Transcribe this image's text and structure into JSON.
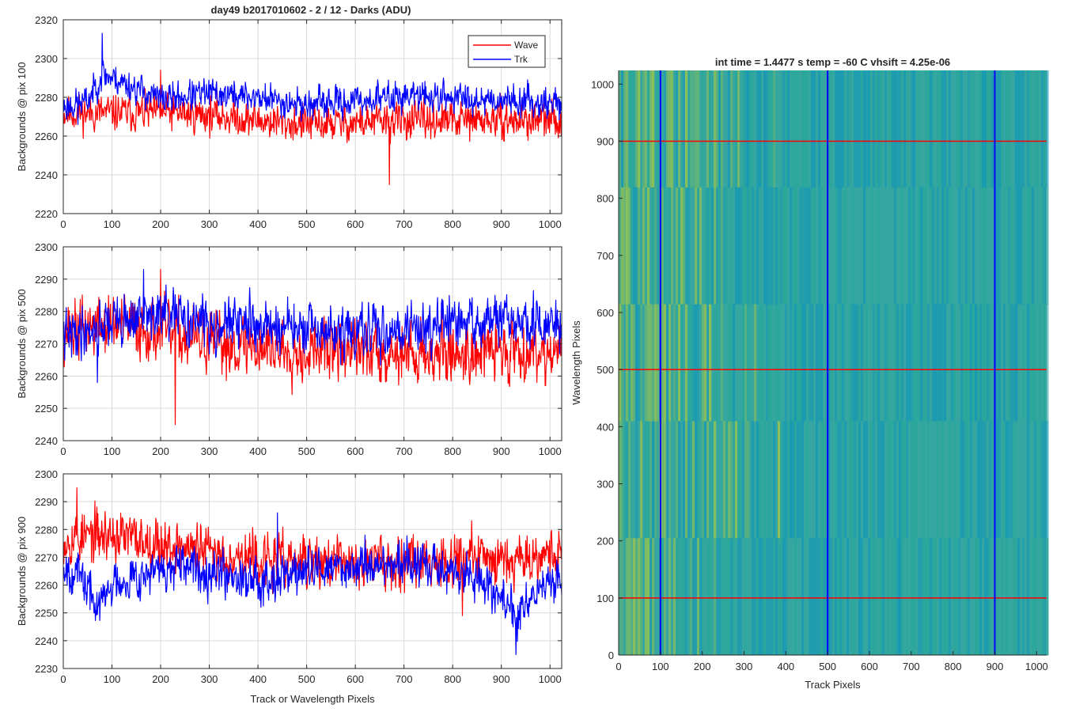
{
  "figure": {
    "suptitle": "day49 b2017010602 - 2 / 12 - Darks (ADU)"
  },
  "chart_data": [
    {
      "type": "line",
      "ylabel": "Backgrounds @ pix 100",
      "xlabel": "",
      "xlim": [
        0,
        1024
      ],
      "ylim": [
        2220,
        2320
      ],
      "xticks": [
        0,
        100,
        200,
        300,
        400,
        500,
        600,
        700,
        800,
        900,
        1000
      ],
      "yticks": [
        2220,
        2240,
        2260,
        2280,
        2300,
        2320
      ],
      "grid": true,
      "legend": {
        "location": "top-right",
        "entries": [
          "Wave",
          "Trk"
        ]
      },
      "series": [
        {
          "name": "Wave",
          "color": "#ff0000",
          "base": 2271,
          "spread": 6,
          "seed": 11,
          "trend": [
            [
              0,
              2272
            ],
            [
              100,
              2272
            ],
            [
              200,
              2272
            ],
            [
              300,
              2271
            ],
            [
              400,
              2268
            ],
            [
              500,
              2266
            ],
            [
              600,
              2267
            ],
            [
              700,
              2268
            ],
            [
              800,
              2268
            ],
            [
              900,
              2268
            ],
            [
              1024,
              2268
            ]
          ],
          "min_point": [
            670,
            2235
          ],
          "max_point": [
            200,
            2294
          ]
        },
        {
          "name": "Trk",
          "color": "#0000ff",
          "base": 2279,
          "spread": 5,
          "seed": 23,
          "trend": [
            [
              0,
              2275
            ],
            [
              50,
              2278
            ],
            [
              80,
              2292
            ],
            [
              120,
              2288
            ],
            [
              200,
              2279
            ],
            [
              300,
              2282
            ],
            [
              400,
              2280
            ],
            [
              500,
              2276
            ],
            [
              600,
              2278
            ],
            [
              700,
              2281
            ],
            [
              800,
              2280
            ],
            [
              900,
              2279
            ],
            [
              1024,
              2277
            ]
          ],
          "min_point": [
            30,
            2266
          ],
          "max_point": [
            80,
            2313
          ]
        }
      ]
    },
    {
      "type": "line",
      "ylabel": "Backgrounds @ pix 500",
      "xlabel": "",
      "xlim": [
        0,
        1024
      ],
      "ylim": [
        2240,
        2300
      ],
      "xticks": [
        0,
        100,
        200,
        300,
        400,
        500,
        600,
        700,
        800,
        900,
        1000
      ],
      "yticks": [
        2240,
        2250,
        2260,
        2270,
        2280,
        2290,
        2300
      ],
      "grid": true,
      "series": [
        {
          "name": "Wave",
          "color": "#ff0000",
          "base": 2270,
          "spread": 6,
          "seed": 37,
          "trend": [
            [
              0,
              2274
            ],
            [
              100,
              2276
            ],
            [
              200,
              2274
            ],
            [
              300,
              2270
            ],
            [
              400,
              2269
            ],
            [
              500,
              2268
            ],
            [
              600,
              2268
            ],
            [
              700,
              2267
            ],
            [
              800,
              2267
            ],
            [
              900,
              2268
            ],
            [
              1024,
              2268
            ]
          ],
          "min_point": [
            230,
            2245
          ],
          "max_point": [
            200,
            2293
          ]
        },
        {
          "name": "Trk",
          "color": "#0000ff",
          "base": 2275,
          "spread": 5,
          "seed": 41,
          "trend": [
            [
              0,
              2272
            ],
            [
              100,
              2277
            ],
            [
              200,
              2279
            ],
            [
              300,
              2276
            ],
            [
              400,
              2276
            ],
            [
              500,
              2274
            ],
            [
              600,
              2273
            ],
            [
              700,
              2275
            ],
            [
              800,
              2276
            ],
            [
              900,
              2277
            ],
            [
              1024,
              2275
            ]
          ],
          "min_point": [
            70,
            2258
          ],
          "max_point": [
            165,
            2293
          ]
        }
      ]
    },
    {
      "type": "line",
      "ylabel": "Backgrounds @ pix 900",
      "xlabel": "Track or Wavelength Pixels",
      "xlim": [
        0,
        1024
      ],
      "ylim": [
        2230,
        2300
      ],
      "xticks": [
        0,
        100,
        200,
        300,
        400,
        500,
        600,
        700,
        800,
        900,
        1000
      ],
      "yticks": [
        2230,
        2240,
        2250,
        2260,
        2270,
        2280,
        2290,
        2300
      ],
      "grid": true,
      "series": [
        {
          "name": "Wave",
          "color": "#ff0000",
          "base": 2271,
          "spread": 6,
          "seed": 53,
          "trend": [
            [
              0,
              2277
            ],
            [
              100,
              2278
            ],
            [
              200,
              2275
            ],
            [
              300,
              2272
            ],
            [
              400,
              2269
            ],
            [
              500,
              2268
            ],
            [
              600,
              2268
            ],
            [
              700,
              2269
            ],
            [
              800,
              2270
            ],
            [
              900,
              2270
            ],
            [
              1024,
              2272
            ]
          ],
          "min_point": [
            820,
            2249
          ],
          "max_point": [
            28,
            2295
          ]
        },
        {
          "name": "Trk",
          "color": "#0000ff",
          "base": 2264,
          "spread": 5,
          "seed": 67,
          "trend": [
            [
              0,
              2268
            ],
            [
              40,
              2262
            ],
            [
              70,
              2252
            ],
            [
              110,
              2262
            ],
            [
              200,
              2265
            ],
            [
              300,
              2266
            ],
            [
              400,
              2262
            ],
            [
              500,
              2265
            ],
            [
              600,
              2267
            ],
            [
              700,
              2268
            ],
            [
              800,
              2265
            ],
            [
              880,
              2260
            ],
            [
              930,
              2248
            ],
            [
              970,
              2258
            ],
            [
              1024,
              2262
            ]
          ],
          "min_point": [
            930,
            2235
          ],
          "max_point": [
            440,
            2286
          ]
        }
      ]
    },
    {
      "type": "heatmap",
      "title": "int time = 1.4477 s   temp = -60 C   vhsift = 4.25e-06",
      "xlabel": "Track Pixels",
      "ylabel": "Wavelength Pixels",
      "xlim": [
        0,
        1024
      ],
      "ylim": [
        0,
        1024
      ],
      "xticks": [
        0,
        100,
        200,
        300,
        400,
        500,
        600,
        700,
        800,
        900,
        1000
      ],
      "yticks": [
        0,
        100,
        200,
        300,
        400,
        500,
        600,
        700,
        800,
        900,
        1000
      ],
      "colormap": "parula",
      "palette": [
        "#5fb27a",
        "#8dbf58",
        "#2aa79b",
        "#1a9ab2",
        "#36a6a0"
      ],
      "vertical_lines": {
        "color": "#0000ff",
        "x": [
          100,
          500,
          900
        ]
      },
      "horizontal_lines": {
        "color": "#ff0000",
        "y": [
          100,
          500,
          900
        ]
      }
    }
  ]
}
